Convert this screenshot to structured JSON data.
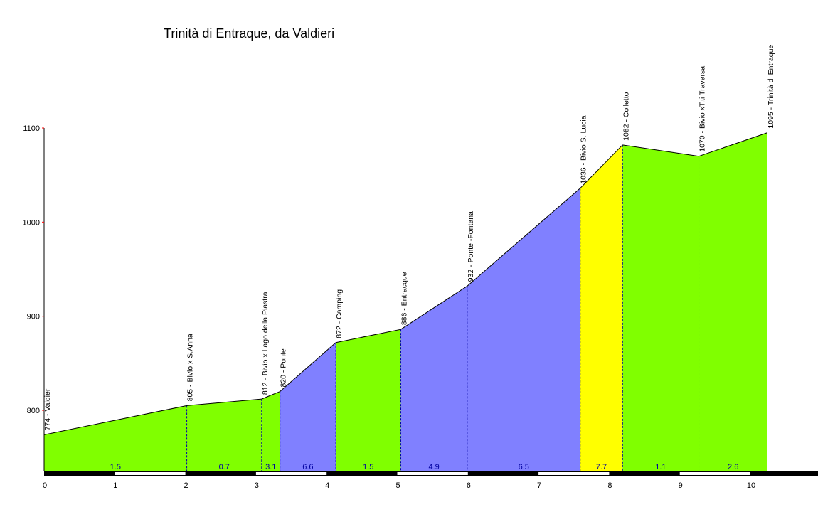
{
  "chart_data": {
    "type": "area",
    "title": "Trinità di Entraque, da Valdieri",
    "xlabel": "",
    "ylabel": "",
    "xlim": [
      0,
      11
    ],
    "ylim": [
      734,
      1100
    ],
    "x_ticks": [
      "0",
      "1",
      "2",
      "3",
      "4",
      "5",
      "6",
      "7",
      "8",
      "9",
      "10"
    ],
    "y_ticks": [
      "800",
      "900",
      "1000",
      "1100"
    ],
    "points": [
      {
        "x": 0.0,
        "y": 774,
        "label": "774 - Valdieri"
      },
      {
        "x": 2.02,
        "y": 805,
        "label": "805 - Bivio  x S.Anna"
      },
      {
        "x": 3.08,
        "y": 812,
        "label": "812 - Bivio x Lago della Piastra"
      },
      {
        "x": 3.34,
        "y": 820,
        "label": "820 - Ponte"
      },
      {
        "x": 4.13,
        "y": 872,
        "label": "872 - Camping"
      },
      {
        "x": 5.05,
        "y": 886,
        "label": "886 - Entracque"
      },
      {
        "x": 5.99,
        "y": 932,
        "label": "932 - Ponte -Fontana"
      },
      {
        "x": 7.59,
        "y": 1036,
        "label": "1036 - Bivio S. Lucia"
      },
      {
        "x": 8.19,
        "y": 1082,
        "label": "1082 - Colletto"
      },
      {
        "x": 9.27,
        "y": 1070,
        "label": "1070 - Bivio xT.ti Traversa"
      },
      {
        "x": 10.24,
        "y": 1095,
        "label": "1095 - Trinità di Entraque"
      }
    ],
    "segments": [
      {
        "gradient": "1.5",
        "color": "#80ff00"
      },
      {
        "gradient": "0.7",
        "color": "#80ff00"
      },
      {
        "gradient": "3.1",
        "color": "#80ff00"
      },
      {
        "gradient": "6.6",
        "color": "#8080ff"
      },
      {
        "gradient": "1.5",
        "color": "#80ff00"
      },
      {
        "gradient": "4.9",
        "color": "#8080ff"
      },
      {
        "gradient": "6.5",
        "color": "#8080ff"
      },
      {
        "gradient": "7.7",
        "color": "#ffff00"
      },
      {
        "gradient": "1.1",
        "color": "#80ff00"
      },
      {
        "gradient": "2.6",
        "color": "#80ff00"
      }
    ],
    "grid": false,
    "legend": "none"
  }
}
